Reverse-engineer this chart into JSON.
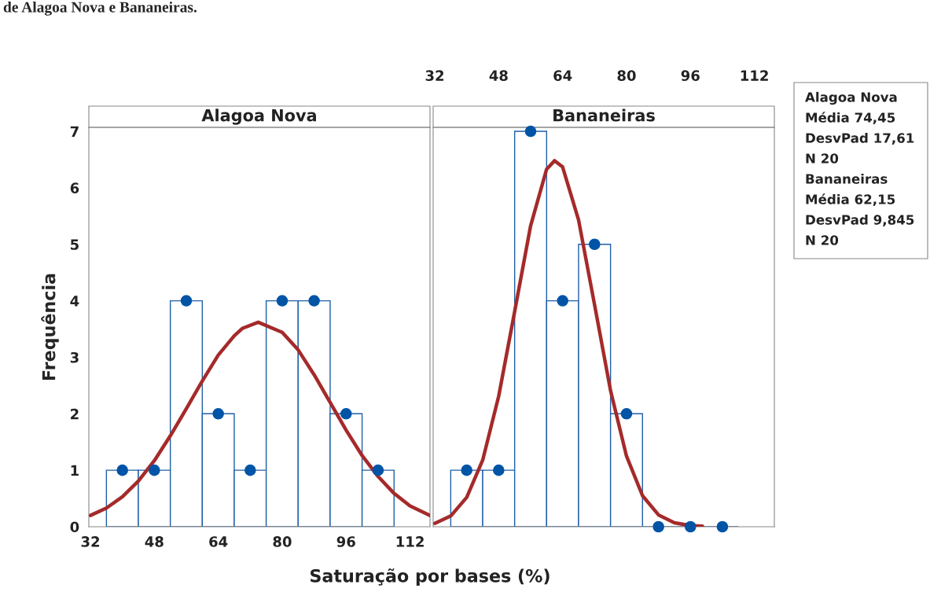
{
  "chart_data": [
    {
      "type": "histogram",
      "title": "Alagoa Nova",
      "xlabel": "Saturação por bases (%)",
      "ylabel": "Frequência",
      "color": "#1f5fa8",
      "bins": [
        36,
        44,
        52,
        60,
        68,
        76,
        84,
        92,
        100,
        108
      ],
      "values": [
        1,
        1,
        4,
        2,
        1,
        4,
        4,
        2,
        1
      ],
      "series": [
        {
          "type": "scatter",
          "x": [
            40,
            48,
            56,
            64,
            72,
            80,
            88,
            96,
            104
          ],
          "values": [
            1,
            1,
            4,
            2,
            1,
            4,
            4,
            2,
            1
          ],
          "color": "#0054a6",
          "marker": "circle"
        },
        {
          "type": "line",
          "x": [
            32,
            36,
            40,
            44,
            48,
            52,
            56,
            60,
            64,
            68,
            70,
            74,
            80,
            84,
            88,
            92,
            96,
            100,
            104,
            108,
            112,
            117
          ],
          "values": [
            0.2,
            0.33,
            0.53,
            0.81,
            1.17,
            1.61,
            2.09,
            2.58,
            3.04,
            3.38,
            3.51,
            3.62,
            3.44,
            3.13,
            2.69,
            2.2,
            1.71,
            1.26,
            0.89,
            0.59,
            0.37,
            0.2
          ],
          "color": "#a52a2a"
        }
      ],
      "xlim": [
        31.6,
        117
      ],
      "xticks": [
        32,
        48,
        64,
        80,
        96,
        112
      ],
      "ylim": [
        0,
        7.07
      ],
      "yticks": [
        0,
        1,
        2,
        3,
        4,
        5,
        6,
        7
      ],
      "grid": false,
      "legend": false,
      "annotations": [
        "de Alagoa Nova e Bananeiras.",
        "Alagoa Nova",
        "Média 74,45",
        "DesvPad 17,61",
        "N 20",
        "Bananeiras",
        "Média 62,15",
        "DesvPad 9,845",
        "N 20"
      ]
    },
    {
      "type": "histogram",
      "title": "Bananeiras",
      "color": "#1f5fa8",
      "bins": [
        36,
        44,
        52,
        60,
        68,
        76,
        84,
        92,
        100,
        108
      ],
      "values": [
        1,
        1,
        7,
        4,
        5,
        2,
        0,
        0,
        0
      ],
      "series": [
        {
          "type": "scatter",
          "x": [
            40,
            48,
            56,
            64,
            72,
            80,
            88,
            96,
            104
          ],
          "values": [
            1,
            1,
            7,
            4,
            5,
            2,
            0,
            0,
            0
          ],
          "color": "#0054a6",
          "marker": "circle"
        },
        {
          "type": "line",
          "x": [
            32,
            36,
            40,
            44,
            48,
            52,
            56,
            60,
            62,
            64,
            68,
            72,
            76,
            80,
            84,
            88,
            92,
            96,
            99
          ],
          "values": [
            0.06,
            0.19,
            0.52,
            1.18,
            2.31,
            3.81,
            5.33,
            6.33,
            6.48,
            6.37,
            5.43,
            3.93,
            2.41,
            1.25,
            0.55,
            0.21,
            0.07,
            0.02,
            0.01
          ],
          "color": "#a52a2a"
        }
      ],
      "xlim": [
        31.6,
        117
      ],
      "xticks": [
        32,
        48,
        64,
        80,
        96,
        112
      ],
      "ylim": [
        0,
        7.07
      ],
      "tick_labels": "x",
      "grid": false,
      "legend": false
    }
  ]
}
